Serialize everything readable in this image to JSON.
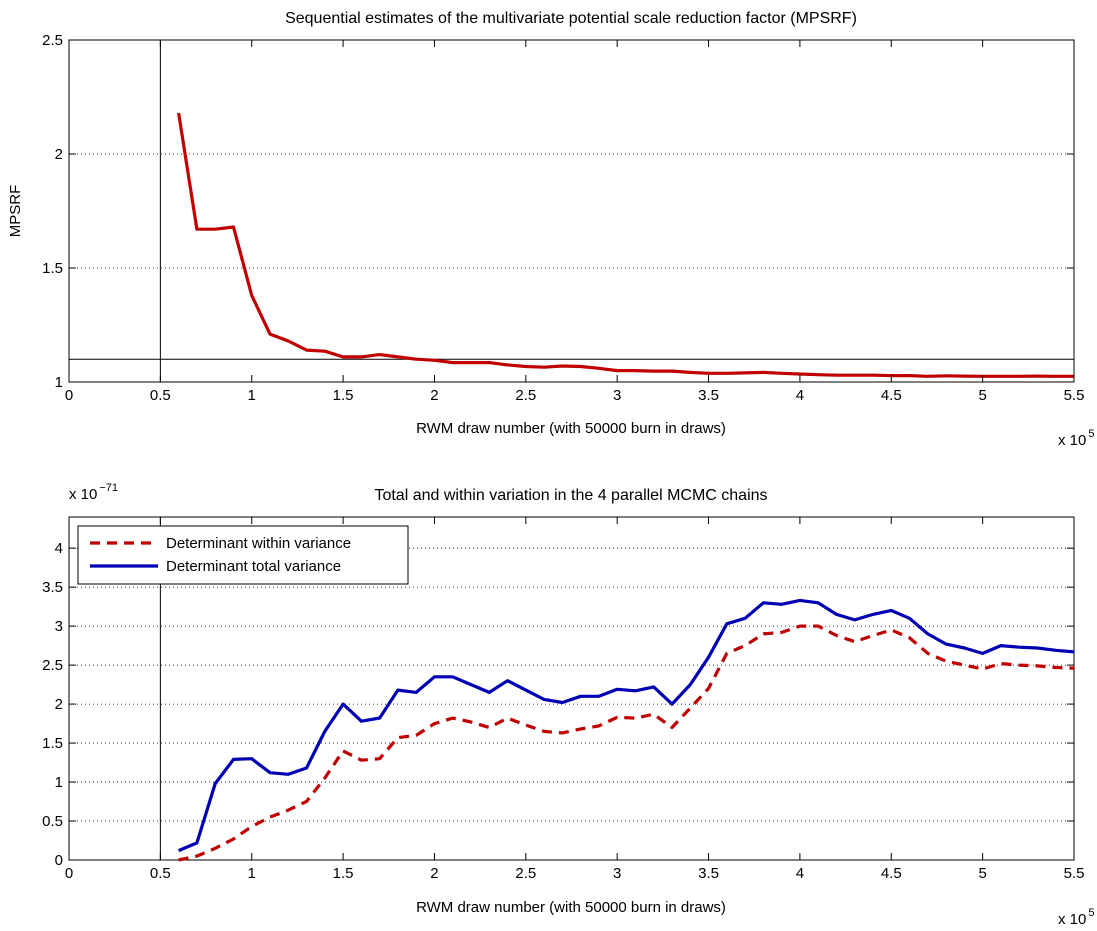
{
  "chart_data": [
    {
      "type": "line",
      "title": "Sequential estimates of the multivariate potential scale reduction factor (MPSRF)",
      "xlabel": "RWM draw number (with 50000 burn in draws)",
      "ylabel": "MPSRF",
      "x_multiplier": "x 10",
      "x_multiplier_exp": "5",
      "y_multiplier": "",
      "y_multiplier_exp": "",
      "xlim": [
        0,
        5.5
      ],
      "ylim": [
        1,
        2.5
      ],
      "xticks": [
        0,
        0.5,
        1,
        1.5,
        2,
        2.5,
        3,
        3.5,
        4,
        4.5,
        5,
        5.5
      ],
      "xtick_labels": [
        "0",
        "0.5",
        "1",
        "1.5",
        "2",
        "2.5",
        "3",
        "3.5",
        "4",
        "4.5",
        "5",
        "5.5"
      ],
      "yticks": [
        1,
        1.5,
        2,
        2.5
      ],
      "ytick_labels": [
        "1",
        "1.5",
        "2",
        "2.5"
      ],
      "grid": true,
      "vline": 0.5,
      "hline": 1.1,
      "legend": null,
      "series": [
        {
          "name": "",
          "color": "#c00000",
          "dash": false,
          "x": [
            0.6,
            0.7,
            0.8,
            0.9,
            1.0,
            1.1,
            1.2,
            1.3,
            1.4,
            1.5,
            1.6,
            1.7,
            1.8,
            1.9,
            2.0,
            2.1,
            2.2,
            2.3,
            2.4,
            2.5,
            2.6,
            2.7,
            2.8,
            2.9,
            3.0,
            3.1,
            3.2,
            3.3,
            3.4,
            3.5,
            3.6,
            3.7,
            3.8,
            3.9,
            4.0,
            4.1,
            4.2,
            4.3,
            4.4,
            4.5,
            4.6,
            4.7,
            4.8,
            4.9,
            5.0,
            5.1,
            5.2,
            5.3,
            5.4,
            5.5
          ],
          "values": [
            2.18,
            1.67,
            1.67,
            1.68,
            1.38,
            1.21,
            1.18,
            1.14,
            1.135,
            1.11,
            1.11,
            1.12,
            1.11,
            1.1,
            1.095,
            1.085,
            1.085,
            1.085,
            1.075,
            1.068,
            1.065,
            1.07,
            1.068,
            1.06,
            1.05,
            1.05,
            1.048,
            1.048,
            1.042,
            1.038,
            1.038,
            1.04,
            1.042,
            1.038,
            1.035,
            1.032,
            1.03,
            1.03,
            1.03,
            1.028,
            1.028,
            1.025,
            1.027,
            1.026,
            1.025,
            1.025,
            1.025,
            1.026,
            1.025,
            1.025
          ]
        }
      ]
    },
    {
      "type": "line",
      "title": "Total and within variation in the 4 parallel MCMC chains",
      "xlabel": "RWM draw number (with 50000 burn in draws)",
      "ylabel": "",
      "x_multiplier": "x 10",
      "x_multiplier_exp": "5",
      "y_multiplier": "x 10",
      "y_multiplier_exp": "−71",
      "xlim": [
        0,
        5.5
      ],
      "ylim": [
        0,
        4.4
      ],
      "xticks": [
        0,
        0.5,
        1,
        1.5,
        2,
        2.5,
        3,
        3.5,
        4,
        4.5,
        5,
        5.5
      ],
      "xtick_labels": [
        "0",
        "0.5",
        "1",
        "1.5",
        "2",
        "2.5",
        "3",
        "3.5",
        "4",
        "4.5",
        "5",
        "5.5"
      ],
      "yticks": [
        0,
        0.5,
        1,
        1.5,
        2,
        2.5,
        3,
        3.5,
        4
      ],
      "ytick_labels": [
        "0",
        "0.5",
        "1",
        "1.5",
        "2",
        "2.5",
        "3",
        "3.5",
        "4"
      ],
      "grid": true,
      "vline": 0.5,
      "hline": null,
      "legend": "top-left",
      "series": [
        {
          "name": "Determinant within variance",
          "color": "#c00000",
          "dash": true,
          "x": [
            0.6,
            0.7,
            0.8,
            0.9,
            1.0,
            1.1,
            1.2,
            1.3,
            1.4,
            1.5,
            1.6,
            1.7,
            1.8,
            1.9,
            2.0,
            2.1,
            2.2,
            2.3,
            2.4,
            2.5,
            2.6,
            2.7,
            2.8,
            2.9,
            3.0,
            3.1,
            3.2,
            3.3,
            3.4,
            3.5,
            3.6,
            3.7,
            3.8,
            3.9,
            4.0,
            4.1,
            4.2,
            4.3,
            4.4,
            4.5,
            4.6,
            4.7,
            4.8,
            4.9,
            5.0,
            5.1,
            5.2,
            5.3,
            5.4,
            5.5
          ],
          "values": [
            0.0,
            0.05,
            0.15,
            0.27,
            0.43,
            0.55,
            0.64,
            0.75,
            1.05,
            1.4,
            1.28,
            1.3,
            1.57,
            1.6,
            1.75,
            1.82,
            1.77,
            1.7,
            1.82,
            1.73,
            1.65,
            1.63,
            1.68,
            1.72,
            1.83,
            1.82,
            1.87,
            1.7,
            1.95,
            2.2,
            2.65,
            2.75,
            2.9,
            2.92,
            3.0,
            3.0,
            2.88,
            2.8,
            2.88,
            2.95,
            2.85,
            2.65,
            2.55,
            2.5,
            2.45,
            2.52,
            2.5,
            2.49,
            2.47,
            2.46
          ]
        },
        {
          "name": "Determinant total variance",
          "color": "#0000b4",
          "dash": false,
          "x": [
            0.6,
            0.7,
            0.8,
            0.9,
            1.0,
            1.1,
            1.2,
            1.3,
            1.4,
            1.5,
            1.6,
            1.7,
            1.8,
            1.9,
            2.0,
            2.1,
            2.2,
            2.3,
            2.4,
            2.5,
            2.6,
            2.7,
            2.8,
            2.9,
            3.0,
            3.1,
            3.2,
            3.3,
            3.4,
            3.5,
            3.6,
            3.7,
            3.8,
            3.9,
            4.0,
            4.1,
            4.2,
            4.3,
            4.4,
            4.5,
            4.6,
            4.7,
            4.8,
            4.9,
            5.0,
            5.1,
            5.2,
            5.3,
            5.4,
            5.5
          ],
          "values": [
            0.12,
            0.22,
            0.98,
            1.29,
            1.3,
            1.12,
            1.1,
            1.18,
            1.65,
            2.0,
            1.78,
            1.82,
            2.18,
            2.15,
            2.35,
            2.35,
            2.25,
            2.15,
            2.3,
            2.18,
            2.06,
            2.02,
            2.1,
            2.1,
            2.19,
            2.17,
            2.22,
            2.0,
            2.25,
            2.6,
            3.03,
            3.1,
            3.3,
            3.28,
            3.33,
            3.3,
            3.15,
            3.08,
            3.15,
            3.2,
            3.1,
            2.9,
            2.77,
            2.72,
            2.65,
            2.75,
            2.73,
            2.72,
            2.69,
            2.67
          ]
        }
      ]
    }
  ]
}
